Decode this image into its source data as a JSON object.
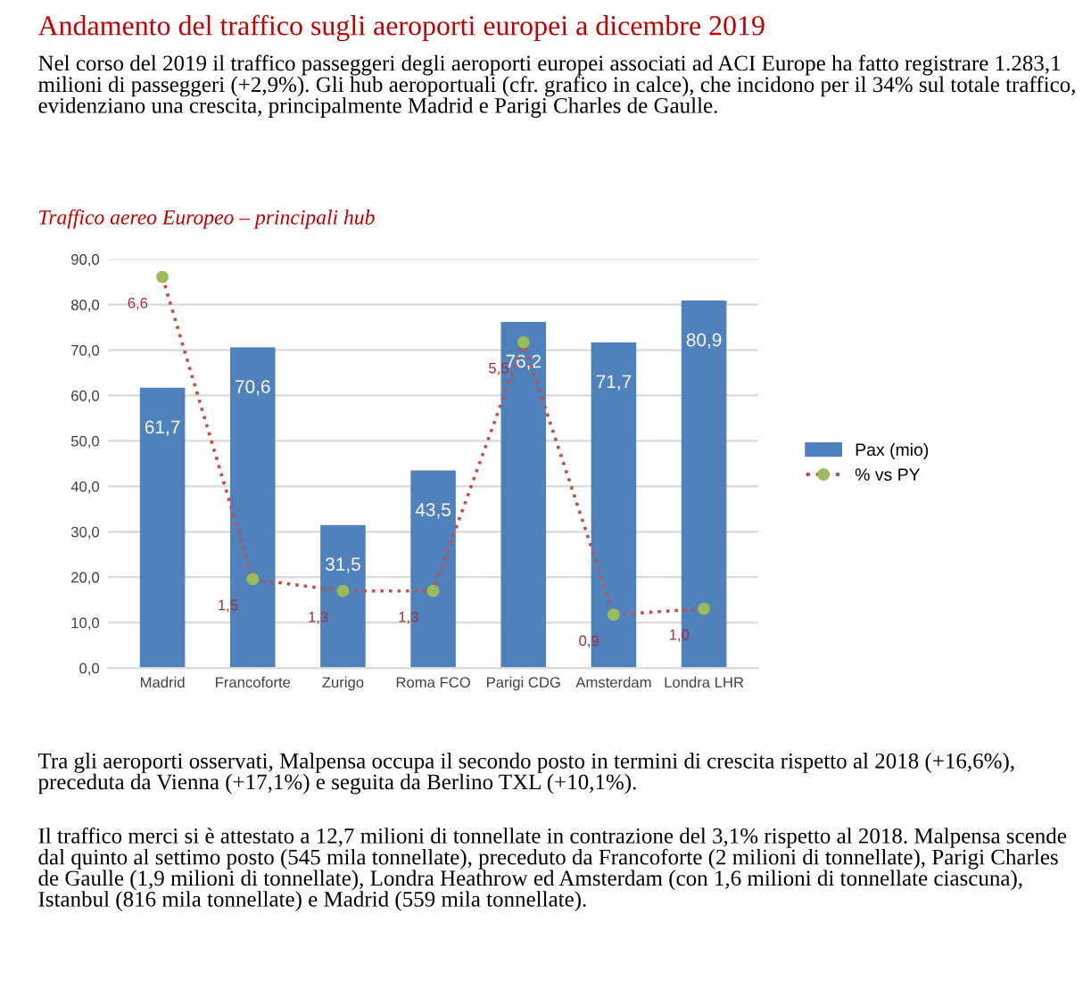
{
  "chart_data": {
    "type": "bar",
    "title": "Andamento del traffico sugli aeroporti europei a dicembre 2019",
    "subtitle": "Traffico aereo Europeo – principali hub",
    "annotations": [
      "Nel corso del 2019 il traffico passeggeri degli aeroporti europei associati ad ACI Europe ha fatto registrare 1.283,1 milioni di passeggeri (+2,9%). Gli hub aeroportuali (cfr. grafico in calce), che incidono per il 34% sul totale traffico, evidenziano una crescita, principalmente Madrid e Parigi Charles de Gaulle.",
      "Tra gli aeroporti osservati, Malpensa occupa il secondo posto in termini di crescita rispetto al 2018 (+16,6%), preceduta da Vienna (+17,1%) e seguita da Berlino TXL (+10,1%).",
      "Il traffico merci si è attestato a 12,7 milioni di tonnellate in contrazione del 3,1% rispetto al 2018. Malpensa scende dal quinto al settimo posto (545 mila tonnellate), preceduto da Francoforte (2 milioni di tonnellate), Parigi Charles de Gaulle (1,9 milioni di tonnellate), Londra Heathrow ed Amsterdam (con 1,6 milioni di tonnellate ciascuna), Istanbul (816 mila tonnellate) e Madrid (559 mila tonnellate)."
    ],
    "categories": [
      "Madrid",
      "Francoforte",
      "Zurigo",
      "Roma FCO",
      "Parigi CDG",
      "Amsterdam",
      "Londra LHR"
    ],
    "series": [
      {
        "name": "Pax (mio)",
        "color": "#4f81bd",
        "values": [
          61.7,
          70.6,
          31.5,
          43.5,
          76.2,
          71.7,
          80.9
        ],
        "value_labels": [
          "61,7",
          "70,6",
          "31,5",
          "43,5",
          "76,2",
          "71,7",
          "80,9"
        ]
      },
      {
        "name": "% vs PY",
        "type": "line",
        "axis": "y2",
        "color": "#c0504d",
        "marker": "circle",
        "line_style": "dotted",
        "values": [
          6.6,
          1.5,
          1.3,
          1.3,
          5.5,
          0.9,
          1.0
        ],
        "value_labels": [
          "6,6",
          "1,5",
          "1,3",
          "1,3",
          "5,5",
          "0,9",
          "1,0"
        ]
      }
    ],
    "ylim": [
      0,
      90
    ],
    "yticks": [
      {
        "value": 0,
        "label": "0,0"
      },
      {
        "value": 10,
        "label": "10,0"
      },
      {
        "value": 20,
        "label": "20,0"
      },
      {
        "value": 30,
        "label": "30,0"
      },
      {
        "value": 40,
        "label": "40,0"
      },
      {
        "value": 50,
        "label": "50,0"
      },
      {
        "value": 60,
        "label": "60,0"
      },
      {
        "value": 70,
        "label": "70,0"
      },
      {
        "value": 80,
        "label": "80,0"
      },
      {
        "value": 90,
        "label": "90,0"
      }
    ],
    "y2lim": [
      0,
      6.9
    ],
    "grid": "y",
    "legend": "right",
    "tick_labels": "xy"
  }
}
